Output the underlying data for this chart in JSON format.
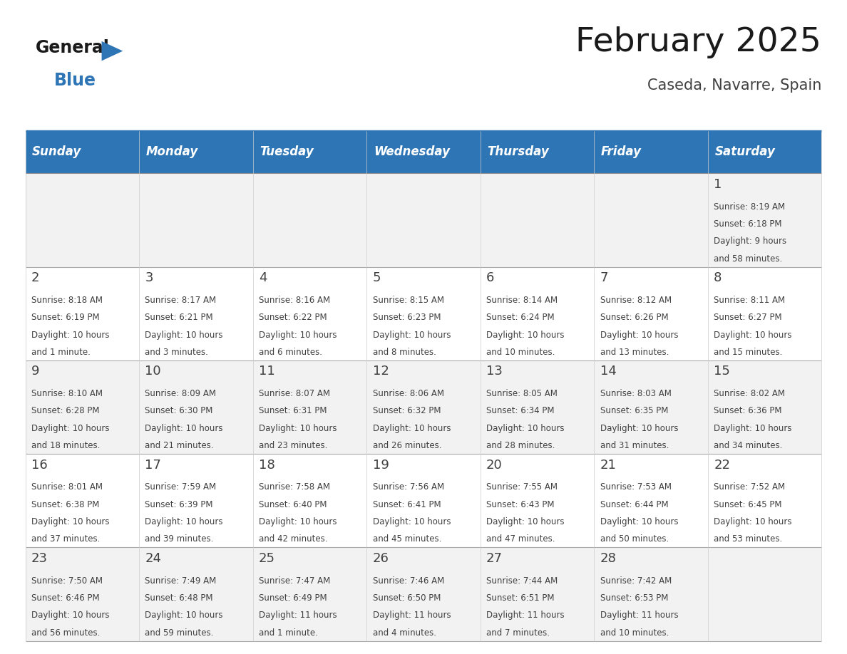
{
  "title": "February 2025",
  "subtitle": "Caseda, Navarre, Spain",
  "header_color": "#2e75b6",
  "header_text_color": "#ffffff",
  "cell_bg_odd": "#f2f2f2",
  "cell_bg_even": "#ffffff",
  "day_headers": [
    "Sunday",
    "Monday",
    "Tuesday",
    "Wednesday",
    "Thursday",
    "Friday",
    "Saturday"
  ],
  "text_color": "#404040",
  "day_num_color": "#404040",
  "calendar_data": [
    [
      null,
      null,
      null,
      null,
      null,
      null,
      {
        "day": 1,
        "sunrise": "8:19 AM",
        "sunset": "6:18 PM",
        "daylight": "9 hours\nand 58 minutes."
      }
    ],
    [
      {
        "day": 2,
        "sunrise": "8:18 AM",
        "sunset": "6:19 PM",
        "daylight": "10 hours\nand 1 minute."
      },
      {
        "day": 3,
        "sunrise": "8:17 AM",
        "sunset": "6:21 PM",
        "daylight": "10 hours\nand 3 minutes."
      },
      {
        "day": 4,
        "sunrise": "8:16 AM",
        "sunset": "6:22 PM",
        "daylight": "10 hours\nand 6 minutes."
      },
      {
        "day": 5,
        "sunrise": "8:15 AM",
        "sunset": "6:23 PM",
        "daylight": "10 hours\nand 8 minutes."
      },
      {
        "day": 6,
        "sunrise": "8:14 AM",
        "sunset": "6:24 PM",
        "daylight": "10 hours\nand 10 minutes."
      },
      {
        "day": 7,
        "sunrise": "8:12 AM",
        "sunset": "6:26 PM",
        "daylight": "10 hours\nand 13 minutes."
      },
      {
        "day": 8,
        "sunrise": "8:11 AM",
        "sunset": "6:27 PM",
        "daylight": "10 hours\nand 15 minutes."
      }
    ],
    [
      {
        "day": 9,
        "sunrise": "8:10 AM",
        "sunset": "6:28 PM",
        "daylight": "10 hours\nand 18 minutes."
      },
      {
        "day": 10,
        "sunrise": "8:09 AM",
        "sunset": "6:30 PM",
        "daylight": "10 hours\nand 21 minutes."
      },
      {
        "day": 11,
        "sunrise": "8:07 AM",
        "sunset": "6:31 PM",
        "daylight": "10 hours\nand 23 minutes."
      },
      {
        "day": 12,
        "sunrise": "8:06 AM",
        "sunset": "6:32 PM",
        "daylight": "10 hours\nand 26 minutes."
      },
      {
        "day": 13,
        "sunrise": "8:05 AM",
        "sunset": "6:34 PM",
        "daylight": "10 hours\nand 28 minutes."
      },
      {
        "day": 14,
        "sunrise": "8:03 AM",
        "sunset": "6:35 PM",
        "daylight": "10 hours\nand 31 minutes."
      },
      {
        "day": 15,
        "sunrise": "8:02 AM",
        "sunset": "6:36 PM",
        "daylight": "10 hours\nand 34 minutes."
      }
    ],
    [
      {
        "day": 16,
        "sunrise": "8:01 AM",
        "sunset": "6:38 PM",
        "daylight": "10 hours\nand 37 minutes."
      },
      {
        "day": 17,
        "sunrise": "7:59 AM",
        "sunset": "6:39 PM",
        "daylight": "10 hours\nand 39 minutes."
      },
      {
        "day": 18,
        "sunrise": "7:58 AM",
        "sunset": "6:40 PM",
        "daylight": "10 hours\nand 42 minutes."
      },
      {
        "day": 19,
        "sunrise": "7:56 AM",
        "sunset": "6:41 PM",
        "daylight": "10 hours\nand 45 minutes."
      },
      {
        "day": 20,
        "sunrise": "7:55 AM",
        "sunset": "6:43 PM",
        "daylight": "10 hours\nand 47 minutes."
      },
      {
        "day": 21,
        "sunrise": "7:53 AM",
        "sunset": "6:44 PM",
        "daylight": "10 hours\nand 50 minutes."
      },
      {
        "day": 22,
        "sunrise": "7:52 AM",
        "sunset": "6:45 PM",
        "daylight": "10 hours\nand 53 minutes."
      }
    ],
    [
      {
        "day": 23,
        "sunrise": "7:50 AM",
        "sunset": "6:46 PM",
        "daylight": "10 hours\nand 56 minutes."
      },
      {
        "day": 24,
        "sunrise": "7:49 AM",
        "sunset": "6:48 PM",
        "daylight": "10 hours\nand 59 minutes."
      },
      {
        "day": 25,
        "sunrise": "7:47 AM",
        "sunset": "6:49 PM",
        "daylight": "11 hours\nand 1 minute."
      },
      {
        "day": 26,
        "sunrise": "7:46 AM",
        "sunset": "6:50 PM",
        "daylight": "11 hours\nand 4 minutes."
      },
      {
        "day": 27,
        "sunrise": "7:44 AM",
        "sunset": "6:51 PM",
        "daylight": "11 hours\nand 7 minutes."
      },
      {
        "day": 28,
        "sunrise": "7:42 AM",
        "sunset": "6:53 PM",
        "daylight": "11 hours\nand 10 minutes."
      },
      null
    ]
  ],
  "logo_text_general": "General",
  "logo_text_blue": "Blue",
  "logo_triangle_color": "#2e75b6"
}
